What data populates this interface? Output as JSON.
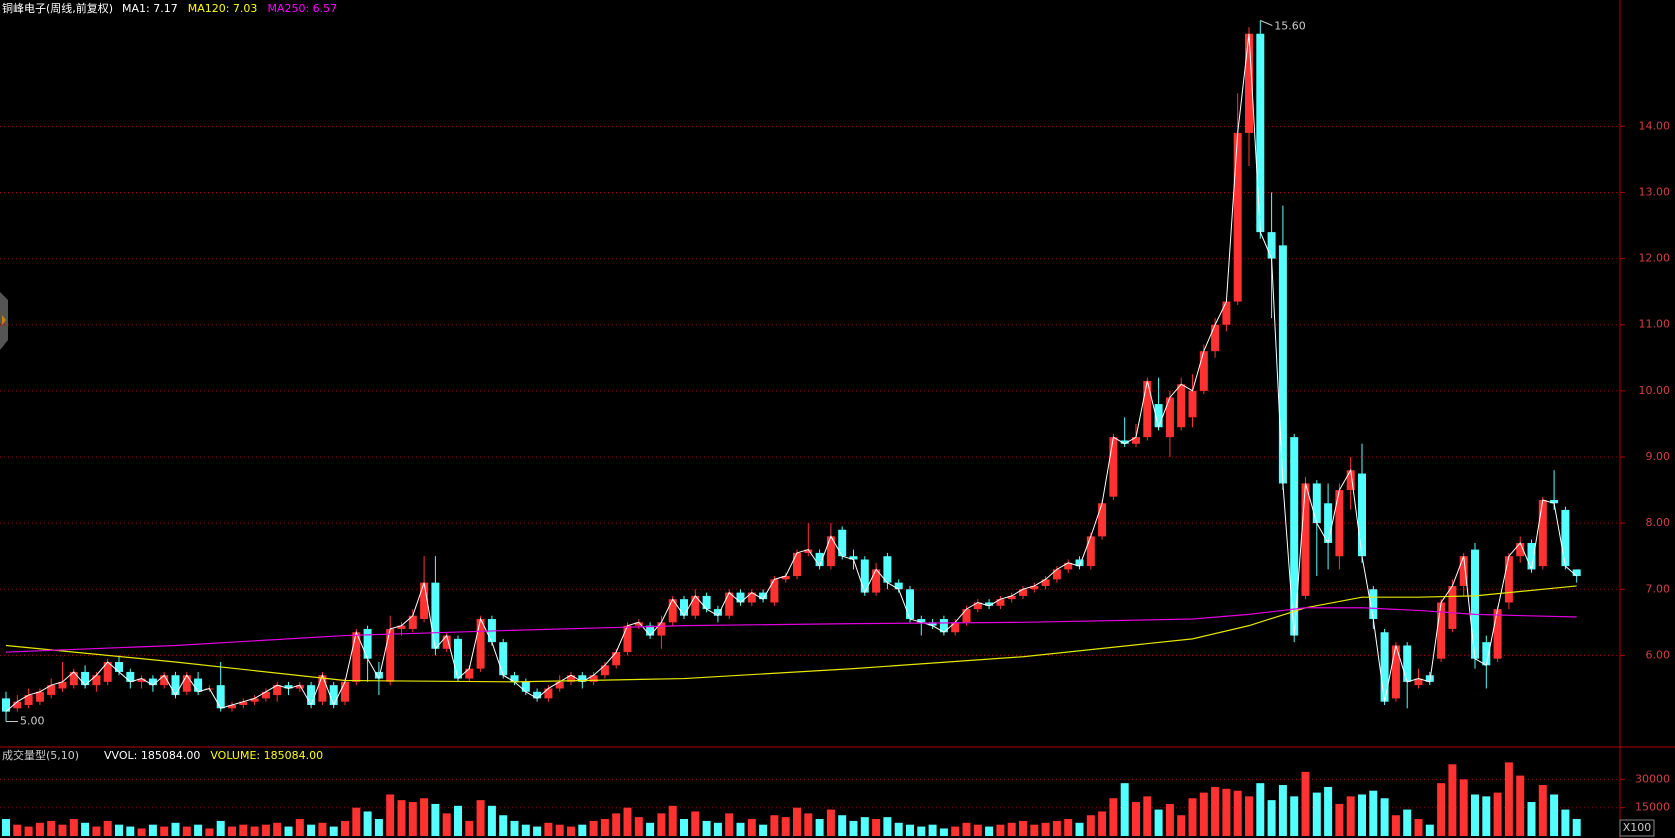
{
  "chart_data": {
    "type": "candlestick",
    "title": "铜峰电子(周线,前复权)",
    "legend": [
      {
        "label": "MA1: 7.17",
        "color": "#ffffff"
      },
      {
        "label": "MA120: 7.03",
        "color": "#ffff00"
      },
      {
        "label": "MA250: 6.57",
        "color": "#ff00ff"
      }
    ],
    "up_color": "#ff3232",
    "down_color": "#54ffff",
    "ma1_color": "#ffffff",
    "open": [
      5.35,
      5.2,
      5.25,
      5.3,
      5.4,
      5.5,
      5.55,
      5.75,
      5.55,
      5.6,
      5.9,
      5.75,
      5.6,
      5.65,
      5.55,
      5.7,
      5.45,
      5.65,
      5.5,
      5.55,
      5.2,
      5.25,
      5.3,
      5.35,
      5.4,
      5.55,
      5.5,
      5.55,
      5.3,
      5.55,
      5.3,
      5.6,
      6.4,
      5.75,
      5.6,
      6.4,
      6.4,
      6.55,
      7.1,
      6.1,
      6.25,
      5.65,
      5.8,
      6.55,
      6.2,
      5.7,
      5.6,
      5.45,
      5.35,
      5.5,
      5.6,
      5.7,
      5.6,
      5.7,
      5.85,
      6.05,
      6.45,
      6.45,
      6.3,
      6.5,
      6.85,
      6.6,
      6.9,
      6.7,
      6.6,
      6.95,
      6.8,
      6.95,
      6.8,
      7.15,
      7.2,
      7.55,
      7.55,
      7.35,
      7.9,
      7.5,
      7.45,
      6.95,
      7.5,
      7.1,
      7.0,
      6.55,
      6.5,
      6.55,
      6.35,
      6.5,
      6.7,
      6.8,
      6.75,
      6.85,
      6.9,
      7.0,
      7.05,
      7.15,
      7.3,
      7.45,
      7.35,
      7.8,
      8.4,
      9.25,
      9.2,
      9.3,
      9.8,
      9.3,
      9.45,
      9.6,
      10.0,
      10.6,
      11.0,
      11.35,
      13.9,
      15.4,
      12.4,
      12.2,
      9.3,
      6.9,
      8.6,
      8.3,
      7.5,
      8.5,
      8.75,
      7.0,
      6.35,
      5.35,
      6.15,
      5.55,
      5.7,
      5.95,
      6.4,
      7.05,
      7.6,
      6.2,
      5.95,
      6.8,
      7.5,
      7.7,
      7.35,
      8.35,
      8.2,
      7.3
    ],
    "high": [
      5.45,
      5.4,
      5.5,
      5.5,
      5.65,
      5.9,
      5.8,
      5.85,
      5.75,
      5.95,
      6.0,
      5.8,
      5.7,
      5.7,
      5.75,
      5.75,
      5.75,
      5.75,
      5.55,
      5.9,
      5.3,
      5.35,
      5.4,
      5.5,
      5.6,
      5.6,
      5.6,
      5.6,
      5.75,
      5.6,
      5.65,
      6.4,
      6.45,
      5.9,
      6.6,
      6.5,
      6.7,
      7.5,
      7.5,
      6.35,
      6.3,
      5.85,
      6.6,
      6.6,
      6.25,
      5.75,
      5.65,
      5.5,
      5.55,
      5.7,
      5.75,
      5.75,
      5.75,
      5.9,
      6.1,
      6.5,
      6.55,
      6.5,
      6.6,
      6.9,
      6.9,
      7.0,
      6.95,
      6.75,
      7.0,
      7.0,
      7.0,
      7.0,
      7.2,
      7.25,
      7.6,
      8.0,
      7.6,
      8.0,
      7.95,
      7.6,
      7.5,
      7.4,
      7.55,
      7.15,
      7.05,
      6.6,
      6.55,
      6.6,
      6.55,
      6.75,
      6.85,
      6.85,
      6.9,
      6.95,
      7.05,
      7.1,
      7.2,
      7.35,
      7.45,
      7.5,
      7.85,
      8.35,
      9.35,
      9.6,
      9.5,
      10.2,
      10.2,
      10.0,
      10.2,
      10.25,
      10.7,
      11.1,
      11.4,
      14.5,
      15.5,
      15.6,
      13.0,
      12.8,
      9.35,
      8.7,
      8.65,
      8.6,
      8.6,
      9.0,
      9.2,
      7.05,
      6.4,
      6.2,
      6.2,
      5.8,
      5.75,
      6.85,
      7.15,
      7.55,
      7.7,
      6.3,
      6.75,
      7.55,
      7.8,
      7.75,
      8.4,
      8.8,
      8.25,
      7.3
    ],
    "low": [
      5.0,
      5.15,
      5.2,
      5.25,
      5.35,
      5.45,
      5.5,
      5.5,
      5.45,
      5.55,
      5.7,
      5.5,
      5.5,
      5.45,
      5.5,
      5.35,
      5.4,
      5.4,
      5.45,
      5.15,
      5.15,
      5.2,
      5.25,
      5.3,
      5.3,
      5.4,
      5.45,
      5.2,
      5.25,
      5.2,
      5.25,
      5.55,
      5.6,
      5.4,
      5.55,
      6.3,
      6.35,
      6.5,
      6.0,
      6.05,
      5.6,
      5.6,
      5.75,
      6.15,
      5.65,
      5.55,
      5.4,
      5.3,
      5.3,
      5.45,
      5.55,
      5.5,
      5.55,
      5.65,
      5.8,
      6.0,
      6.4,
      6.25,
      6.1,
      6.45,
      6.55,
      6.55,
      6.65,
      6.5,
      6.55,
      6.75,
      6.75,
      6.8,
      6.75,
      7.1,
      7.15,
      7.5,
      7.3,
      7.3,
      7.45,
      7.3,
      6.9,
      6.9,
      7.0,
      6.95,
      6.5,
      6.3,
      6.4,
      6.3,
      6.3,
      6.45,
      6.65,
      6.7,
      6.7,
      6.8,
      6.85,
      6.95,
      7.0,
      7.1,
      7.25,
      7.3,
      7.3,
      7.75,
      8.35,
      9.15,
      9.15,
      9.25,
      9.4,
      9.0,
      9.4,
      9.45,
      9.95,
      10.5,
      10.9,
      11.3,
      13.4,
      12.3,
      11.1,
      8.5,
      6.2,
      6.85,
      7.2,
      7.3,
      7.3,
      8.2,
      7.4,
      6.4,
      5.25,
      5.3,
      5.2,
      5.5,
      5.55,
      5.9,
      6.35,
      6.9,
      5.8,
      5.5,
      5.9,
      6.7,
      7.4,
      7.25,
      7.3,
      8.2,
      7.3,
      7.1
    ],
    "close": [
      5.15,
      5.3,
      5.4,
      5.45,
      5.55,
      5.6,
      5.75,
      5.55,
      5.7,
      5.9,
      5.75,
      5.6,
      5.65,
      5.55,
      5.7,
      5.4,
      5.7,
      5.45,
      5.5,
      5.2,
      5.25,
      5.3,
      5.35,
      5.45,
      5.55,
      5.5,
      5.55,
      5.25,
      5.7,
      5.25,
      5.6,
      6.35,
      5.95,
      5.65,
      6.4,
      6.45,
      6.6,
      7.1,
      6.1,
      6.3,
      5.65,
      5.8,
      6.55,
      6.2,
      5.7,
      5.6,
      5.45,
      5.35,
      5.5,
      5.6,
      5.7,
      5.6,
      5.7,
      5.85,
      6.05,
      6.45,
      6.5,
      6.3,
      6.5,
      6.85,
      6.6,
      6.9,
      6.7,
      6.6,
      6.95,
      6.8,
      6.95,
      6.85,
      7.15,
      7.2,
      7.55,
      7.6,
      7.35,
      7.8,
      7.5,
      7.45,
      6.95,
      7.3,
      7.1,
      7.0,
      6.55,
      6.5,
      6.45,
      6.35,
      6.5,
      6.7,
      6.8,
      6.75,
      6.85,
      6.9,
      7.0,
      7.05,
      7.15,
      7.3,
      7.4,
      7.35,
      7.8,
      8.3,
      9.3,
      9.2,
      9.3,
      10.15,
      9.45,
      9.9,
      10.1,
      10.0,
      10.6,
      11.0,
      11.35,
      13.9,
      15.4,
      12.4,
      12.0,
      8.6,
      6.3,
      8.6,
      8.0,
      7.7,
      8.5,
      8.8,
      7.5,
      6.55,
      5.3,
      6.15,
      5.6,
      5.65,
      5.6,
      6.8,
      7.05,
      7.5,
      5.95,
      5.85,
      6.7,
      7.5,
      7.7,
      7.3,
      8.35,
      8.3,
      7.35,
      7.2
    ],
    "ylim": [
      4.63,
      15.91
    ],
    "yticks": [
      {
        "value": 6,
        "label": "6.00"
      },
      {
        "value": 7,
        "label": "7.00"
      },
      {
        "value": 8,
        "label": "8.00"
      },
      {
        "value": 9,
        "label": "9.00"
      },
      {
        "value": 10,
        "label": "10.00"
      },
      {
        "value": 11,
        "label": "11.00"
      },
      {
        "value": 12,
        "label": "12.00"
      },
      {
        "value": 13,
        "label": "13.00"
      },
      {
        "value": 14,
        "label": "14.00"
      }
    ],
    "grid": true,
    "high_label": "15.60",
    "low_label": "5.00",
    "ma_lines": {
      "x": [
        0,
        15,
        30,
        45,
        60,
        75,
        90,
        105,
        110,
        115,
        120,
        125,
        130,
        139
      ],
      "series": [
        {
          "name": "MA120",
          "color": "#e6e600",
          "values": [
            6.15,
            5.9,
            5.62,
            5.6,
            5.65,
            5.8,
            5.98,
            6.25,
            6.45,
            6.72,
            6.88,
            6.88,
            6.9,
            7.05
          ]
        },
        {
          "name": "MA250",
          "color": "#e000e0",
          "values": [
            6.05,
            6.15,
            6.3,
            6.38,
            6.45,
            6.48,
            6.5,
            6.55,
            6.62,
            6.72,
            6.72,
            6.68,
            6.62,
            6.58
          ]
        }
      ]
    },
    "volume": {
      "title": "成交量型(5,10)",
      "labels": [
        {
          "label": "VVOL: 185084.00",
          "color": "#ffffff"
        },
        {
          "label": "VOLUME: 185084.00",
          "color": "#ffff00"
        }
      ],
      "unit": "X100",
      "ylim": [
        0,
        46100
      ],
      "yticks": [
        15000,
        30000
      ],
      "values": [
        9000,
        6000,
        5000,
        7000,
        8000,
        6000,
        9000,
        7000,
        5000,
        8000,
        6000,
        5000,
        4000,
        6000,
        5000,
        7000,
        5000,
        6000,
        4000,
        8000,
        5000,
        6000,
        5000,
        6000,
        7000,
        5000,
        9000,
        6000,
        7000,
        5000,
        8000,
        15000,
        13000,
        9000,
        22000,
        19000,
        18000,
        20000,
        17000,
        12000,
        16000,
        8000,
        19000,
        16000,
        11000,
        8000,
        6000,
        5000,
        7000,
        6000,
        5000,
        6000,
        8000,
        9000,
        12000,
        15000,
        10000,
        7000,
        12000,
        16000,
        9000,
        13000,
        8000,
        7000,
        12000,
        7000,
        9000,
        6000,
        11000,
        10000,
        15000,
        12000,
        9000,
        14000,
        11000,
        8000,
        10000,
        9000,
        10000,
        7000,
        6000,
        5000,
        6000,
        4000,
        5000,
        7000,
        6000,
        5000,
        6000,
        7000,
        8000,
        6000,
        7000,
        8000,
        9000,
        7000,
        11000,
        13000,
        20000,
        28000,
        18000,
        21000,
        14000,
        17000,
        11000,
        20000,
        23000,
        26000,
        25000,
        24000,
        21000,
        28000,
        19000,
        27000,
        21000,
        34000,
        23000,
        26000,
        17000,
        21000,
        22000,
        24000,
        20000,
        11000,
        14000,
        9000,
        6000,
        28000,
        38000,
        30000,
        22000,
        21000,
        23000,
        39000,
        32000,
        18000,
        27000,
        22000,
        14000,
        9000
      ]
    }
  }
}
